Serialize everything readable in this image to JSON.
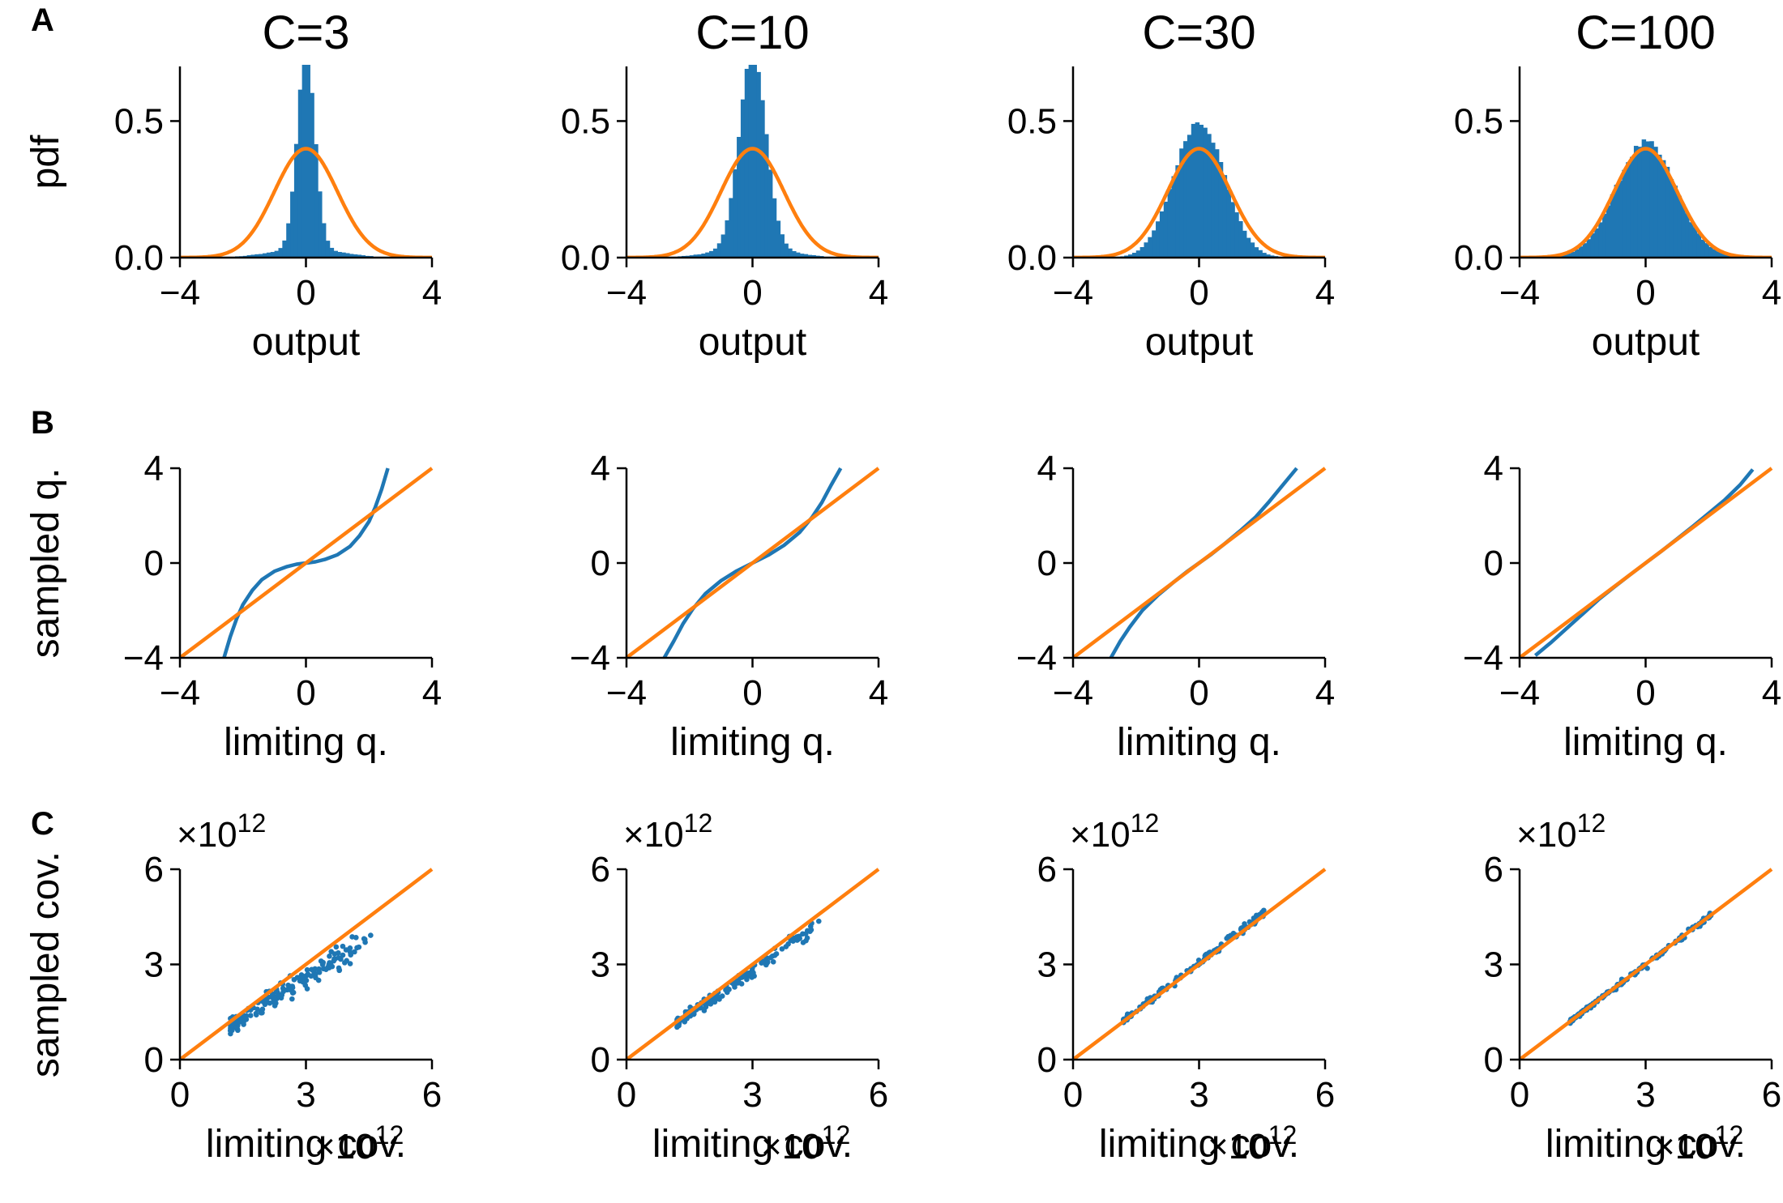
{
  "panel_letters": [
    "A",
    "B",
    "C"
  ],
  "chart_data": [
    {
      "row": "A",
      "type": "bar",
      "title": "C=3",
      "xlabel": "output",
      "ylabel": "pdf",
      "xlim": [
        -4,
        4
      ],
      "ylim": [
        0,
        0.7
      ],
      "xticks": [
        -4,
        0,
        4
      ],
      "yticks": [
        0,
        0.5
      ],
      "xtick_labels": [
        "−4",
        "0",
        "4"
      ],
      "ytick_labels": [
        "0.0",
        "0.5"
      ],
      "series": [
        {
          "name": "",
          "kind": "histogram",
          "color": "#1f77b4",
          "shape": {
            "peak": 0.72,
            "sigma": 0.28,
            "tail_fraction": 0.18,
            "tail_sigma": 1.1
          }
        },
        {
          "name": "",
          "kind": "normal_pdf",
          "color": "#ff7f0e",
          "mean": 0,
          "std": 1
        }
      ],
      "grid": false
    },
    {
      "row": "A",
      "type": "bar",
      "title": "C=10",
      "xlabel": "output",
      "ylabel": "",
      "xlim": [
        -4,
        4
      ],
      "ylim": [
        0,
        0.7
      ],
      "xticks": [
        -4,
        0,
        4
      ],
      "yticks": [
        0,
        0.5
      ],
      "xtick_labels": [
        "−4",
        "0",
        "4"
      ],
      "ytick_labels": [
        "0.0",
        "0.5"
      ],
      "series": [
        {
          "name": "",
          "kind": "histogram",
          "color": "#1f77b4",
          "shape": {
            "peak": 0.71,
            "sigma": 0.42,
            "tail_fraction": 0.2,
            "tail_sigma": 1.15
          }
        },
        {
          "name": "",
          "kind": "normal_pdf",
          "color": "#ff7f0e",
          "mean": 0,
          "std": 1
        }
      ],
      "grid": false
    },
    {
      "row": "A",
      "type": "bar",
      "title": "C=30",
      "xlabel": "output",
      "ylabel": "",
      "xlim": [
        -4,
        4
      ],
      "ylim": [
        0,
        0.7
      ],
      "xticks": [
        -4,
        0,
        4
      ],
      "yticks": [
        0,
        0.5
      ],
      "xtick_labels": [
        "−4",
        "0",
        "4"
      ],
      "ytick_labels": [
        "0.0",
        "0.5"
      ],
      "series": [
        {
          "name": "",
          "kind": "histogram",
          "color": "#1f77b4",
          "shape": {
            "peak": 0.5,
            "sigma": 0.8,
            "tail_fraction": 0.0,
            "tail_sigma": 1.0
          }
        },
        {
          "name": "",
          "kind": "normal_pdf",
          "color": "#ff7f0e",
          "mean": 0,
          "std": 1
        }
      ],
      "grid": false
    },
    {
      "row": "A",
      "type": "bar",
      "title": "C=100",
      "xlabel": "output",
      "ylabel": "",
      "xlim": [
        -4,
        4
      ],
      "ylim": [
        0,
        0.7
      ],
      "xticks": [
        -4,
        0,
        4
      ],
      "yticks": [
        0,
        0.5
      ],
      "xtick_labels": [
        "−4",
        "0",
        "4"
      ],
      "ytick_labels": [
        "0.0",
        "0.5"
      ],
      "series": [
        {
          "name": "",
          "kind": "histogram",
          "color": "#1f77b4",
          "shape": {
            "peak": 0.42,
            "sigma": 0.95,
            "tail_fraction": 0.0,
            "tail_sigma": 1.0
          }
        },
        {
          "name": "",
          "kind": "normal_pdf",
          "color": "#ff7f0e",
          "mean": 0,
          "std": 1
        }
      ],
      "grid": false
    },
    {
      "row": "B",
      "type": "line",
      "xlabel": "limiting q.",
      "ylabel": "sampled q.",
      "xlim": [
        -4,
        4
      ],
      "ylim": [
        -4,
        4
      ],
      "xticks": [
        -4,
        0,
        4
      ],
      "yticks": [
        -4,
        0,
        4
      ],
      "xtick_labels": [
        "−4",
        "0",
        "4"
      ],
      "ytick_labels": [
        "−4",
        "0",
        "4"
      ],
      "series": [
        {
          "name": "",
          "color": "#1f77b4",
          "x": [
            -2.6,
            -2.4,
            -2.2,
            -2.0,
            -1.7,
            -1.4,
            -1.0,
            -0.6,
            -0.3,
            0,
            0.3,
            0.6,
            1.0,
            1.4,
            1.7,
            2.0,
            2.2,
            2.4,
            2.6
          ],
          "y": [
            -4.0,
            -3.1,
            -2.35,
            -1.75,
            -1.15,
            -0.7,
            -0.35,
            -0.15,
            -0.05,
            0,
            0.05,
            0.15,
            0.35,
            0.7,
            1.15,
            1.75,
            2.35,
            3.1,
            4.0
          ]
        },
        {
          "name": "",
          "color": "#ff7f0e",
          "x": [
            -4,
            4
          ],
          "y": [
            -4,
            4
          ]
        }
      ],
      "grid": false
    },
    {
      "row": "B",
      "type": "line",
      "xlabel": "limiting q.",
      "ylabel": "",
      "xlim": [
        -4,
        4
      ],
      "ylim": [
        -4,
        4
      ],
      "xticks": [
        -4,
        0,
        4
      ],
      "yticks": [
        -4,
        0,
        4
      ],
      "xtick_labels": [
        "−4",
        "0",
        "4"
      ],
      "ytick_labels": [
        "−4",
        "0",
        "4"
      ],
      "series": [
        {
          "name": "",
          "color": "#1f77b4",
          "x": [
            -2.8,
            -2.5,
            -2.2,
            -1.9,
            -1.5,
            -1.0,
            -0.5,
            0,
            0.5,
            1.0,
            1.5,
            1.9,
            2.2,
            2.5,
            2.8
          ],
          "y": [
            -4.0,
            -3.3,
            -2.55,
            -1.95,
            -1.3,
            -0.75,
            -0.33,
            0,
            0.33,
            0.75,
            1.3,
            1.95,
            2.55,
            3.3,
            4.0
          ]
        },
        {
          "name": "",
          "color": "#ff7f0e",
          "x": [
            -4,
            4
          ],
          "y": [
            -4,
            4
          ]
        }
      ],
      "grid": false
    },
    {
      "row": "B",
      "type": "line",
      "xlabel": "limiting q.",
      "ylabel": "",
      "xlim": [
        -4,
        4
      ],
      "ylim": [
        -4,
        4
      ],
      "xticks": [
        -4,
        0,
        4
      ],
      "yticks": [
        -4,
        0,
        4
      ],
      "xtick_labels": [
        "−4",
        "0",
        "4"
      ],
      "ytick_labels": [
        "−4",
        "0",
        "4"
      ],
      "series": [
        {
          "name": "",
          "color": "#1f77b4",
          "x": [
            -2.8,
            -2.5,
            -2.2,
            -1.8,
            -1.3,
            -0.8,
            -0.4,
            0,
            0.4,
            0.8,
            1.3,
            1.8,
            2.2,
            2.6,
            3.1
          ],
          "y": [
            -4.0,
            -3.3,
            -2.7,
            -2.0,
            -1.35,
            -0.8,
            -0.38,
            0,
            0.38,
            0.8,
            1.35,
            1.95,
            2.55,
            3.2,
            4.0
          ]
        },
        {
          "name": "",
          "color": "#ff7f0e",
          "x": [
            -4,
            4
          ],
          "y": [
            -4,
            4
          ]
        }
      ],
      "grid": false
    },
    {
      "row": "B",
      "type": "line",
      "xlabel": "limiting q.",
      "ylabel": "",
      "xlim": [
        -4,
        4
      ],
      "ylim": [
        -4,
        4
      ],
      "xticks": [
        -4,
        0,
        4
      ],
      "yticks": [
        -4,
        0,
        4
      ],
      "xtick_labels": [
        "−4",
        "0",
        "4"
      ],
      "ytick_labels": [
        "−4",
        "0",
        "4"
      ],
      "series": [
        {
          "name": "",
          "color": "#1f77b4",
          "x": [
            -3.5,
            -3.0,
            -2.5,
            -2.0,
            -1.5,
            -1.0,
            -0.5,
            0,
            0.5,
            1.0,
            1.5,
            2.0,
            2.5,
            3.0,
            3.4
          ],
          "y": [
            -3.9,
            -3.35,
            -2.75,
            -2.15,
            -1.55,
            -1.02,
            -0.5,
            0,
            0.5,
            1.02,
            1.55,
            2.1,
            2.65,
            3.3,
            3.95
          ]
        },
        {
          "name": "",
          "color": "#ff7f0e",
          "x": [
            -4,
            4
          ],
          "y": [
            -4,
            4
          ]
        }
      ],
      "grid": false
    },
    {
      "row": "C",
      "type": "scatter",
      "xlabel": "limiting cov.",
      "ylabel": "sampled cov.",
      "multiplier_label": "×10",
      "multiplier_exp": "12",
      "xlim": [
        0,
        6
      ],
      "ylim": [
        0,
        6
      ],
      "xticks": [
        0,
        3,
        6
      ],
      "yticks": [
        0,
        3,
        6
      ],
      "xtick_labels": [
        "0",
        "3",
        "6"
      ],
      "ytick_labels": [
        "0",
        "3",
        "6"
      ],
      "series": [
        {
          "name": "",
          "color": "#1f77b4",
          "x_range": [
            1.2,
            4.6
          ],
          "slope": 0.84,
          "intercept": 0.05,
          "spread": 0.13,
          "n": 180
        },
        {
          "name": "",
          "color": "#ff7f0e",
          "x": [
            0,
            6
          ],
          "y": [
            0,
            6
          ]
        }
      ],
      "grid": false
    },
    {
      "row": "C",
      "type": "scatter",
      "xlabel": "limiting cov.",
      "ylabel": "",
      "multiplier_label": "×10",
      "multiplier_exp": "12",
      "xlim": [
        0,
        6
      ],
      "ylim": [
        0,
        6
      ],
      "xticks": [
        0,
        3,
        6
      ],
      "yticks": [
        0,
        3,
        6
      ],
      "xtick_labels": [
        "0",
        "3",
        "6"
      ],
      "ytick_labels": [
        "0",
        "3",
        "6"
      ],
      "series": [
        {
          "name": "",
          "color": "#1f77b4",
          "x_range": [
            1.2,
            4.6
          ],
          "slope": 0.93,
          "intercept": 0.02,
          "spread": 0.07,
          "n": 160
        },
        {
          "name": "",
          "color": "#ff7f0e",
          "x": [
            0,
            6
          ],
          "y": [
            0,
            6
          ]
        }
      ],
      "grid": false
    },
    {
      "row": "C",
      "type": "scatter",
      "xlabel": "limiting cov.",
      "ylabel": "",
      "multiplier_label": "×10",
      "multiplier_exp": "12",
      "xlim": [
        0,
        6
      ],
      "ylim": [
        0,
        6
      ],
      "xticks": [
        0,
        3,
        6
      ],
      "yticks": [
        0,
        3,
        6
      ],
      "xtick_labels": [
        "0",
        "3",
        "6"
      ],
      "ytick_labels": [
        "0",
        "3",
        "6"
      ],
      "series": [
        {
          "name": "",
          "color": "#1f77b4",
          "x_range": [
            1.2,
            4.6
          ],
          "slope": 1.02,
          "intercept": 0.0,
          "spread": 0.04,
          "n": 160
        },
        {
          "name": "",
          "color": "#ff7f0e",
          "x": [
            0,
            6
          ],
          "y": [
            0,
            6
          ]
        }
      ],
      "grid": false
    },
    {
      "row": "C",
      "type": "scatter",
      "xlabel": "limiting cov.",
      "ylabel": "",
      "multiplier_label": "×10",
      "multiplier_exp": "12",
      "xlim": [
        0,
        6
      ],
      "ylim": [
        0,
        6
      ],
      "xticks": [
        0,
        3,
        6
      ],
      "yticks": [
        0,
        3,
        6
      ],
      "xtick_labels": [
        "0",
        "3",
        "6"
      ],
      "ytick_labels": [
        "0",
        "3",
        "6"
      ],
      "series": [
        {
          "name": "",
          "color": "#1f77b4",
          "x_range": [
            1.2,
            4.6
          ],
          "slope": 1.0,
          "intercept": 0.0,
          "spread": 0.03,
          "n": 160
        },
        {
          "name": "",
          "color": "#ff7f0e",
          "x": [
            0,
            6
          ],
          "y": [
            0,
            6
          ]
        }
      ],
      "grid": false
    }
  ]
}
